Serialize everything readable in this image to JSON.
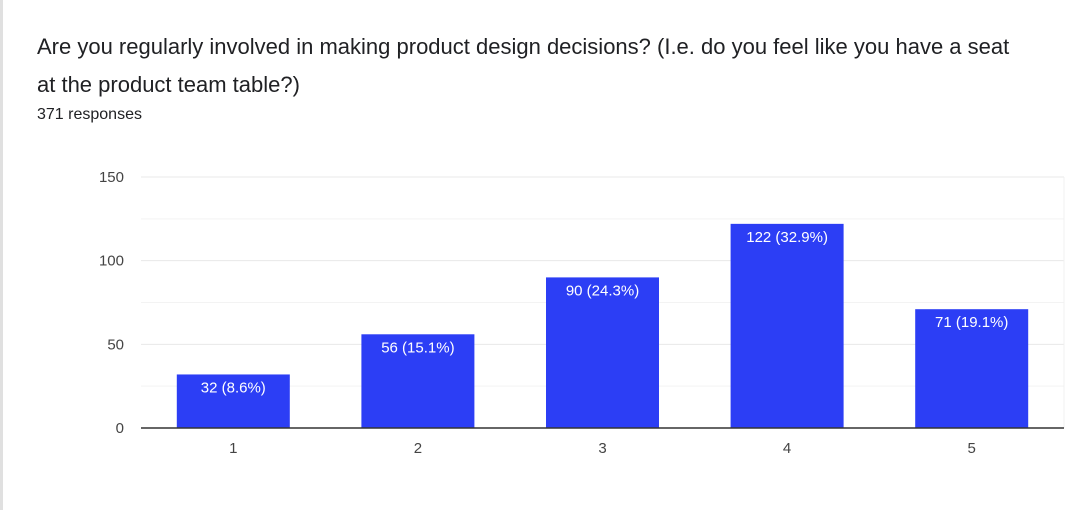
{
  "chart_data": {
    "type": "bar",
    "title": "Are you regularly involved in making product design decisions? (I.e. do you feel like you have a seat at the product team table?)",
    "subtitle": "371 responses",
    "categories": [
      "1",
      "2",
      "3",
      "4",
      "5"
    ],
    "values": [
      32,
      56,
      90,
      122,
      71
    ],
    "data_labels": [
      "32 (8.6%)",
      "56 (15.1%)",
      "90 (24.3%)",
      "122 (32.9%)",
      "71 (19.1%)"
    ],
    "xlabel": "",
    "ylabel": "",
    "ylim": [
      0,
      150
    ],
    "yticks": [
      "0",
      "50",
      "100",
      "150"
    ],
    "grid": true,
    "legend": "none",
    "bar_color": "#2c3ef5"
  }
}
